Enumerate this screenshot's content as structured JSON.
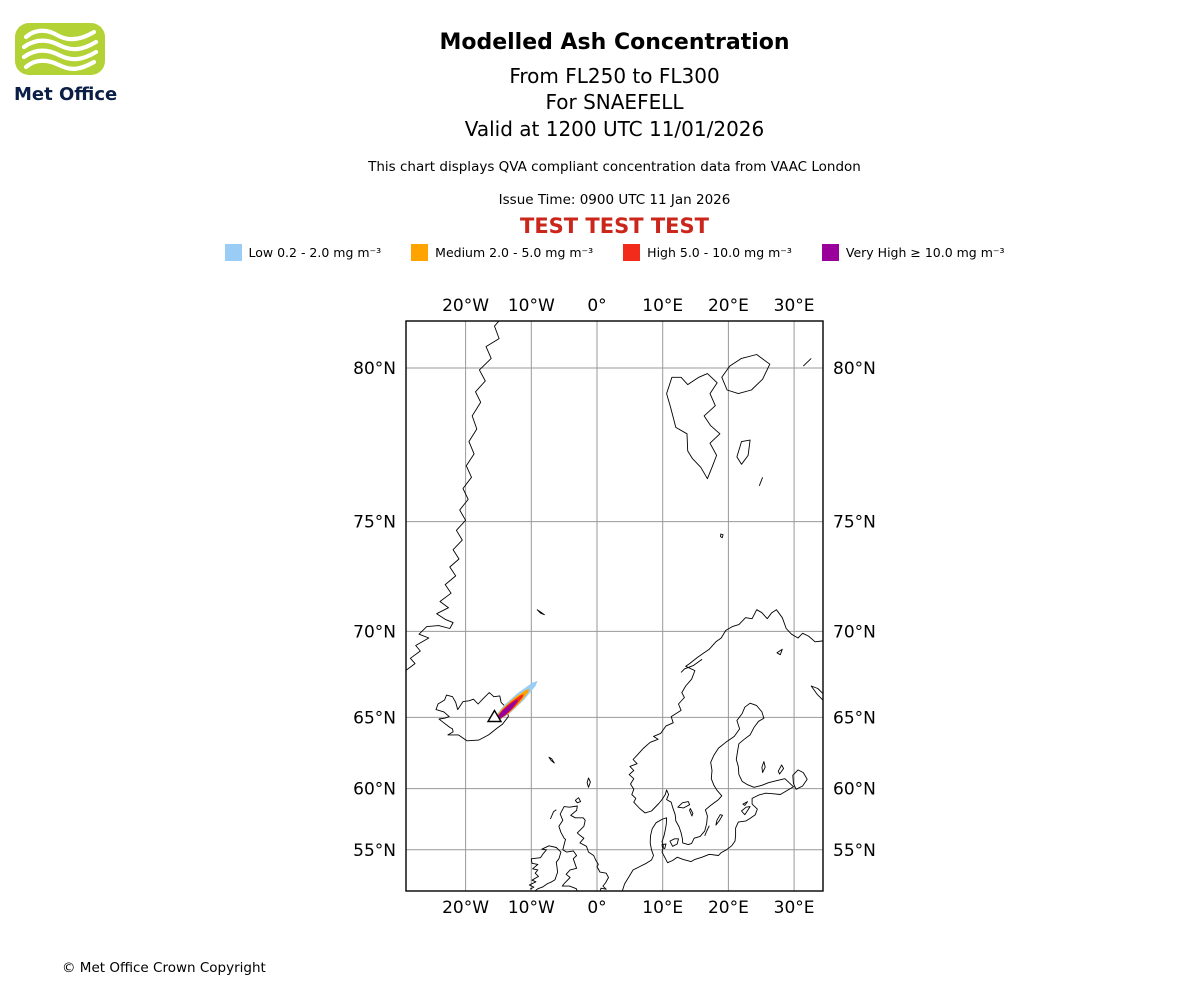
{
  "logo": {
    "brand": "Met Office",
    "green": "#B2D235",
    "navy": "#0A1E46"
  },
  "header": {
    "title": "Modelled Ash Concentration",
    "subtitle1": "From FL250 to FL300",
    "subtitle2": "For SNAEFELL",
    "subtitle3": "Valid at 1200 UTC 11/01/2026",
    "note": "This chart displays QVA compliant concentration data from VAAC London",
    "issue_time": "Issue Time: 0900 UTC 11 Jan 2026",
    "test_banner": "TEST TEST TEST",
    "test_color": "#CB261B"
  },
  "legend": {
    "items": [
      {
        "level": "low",
        "label": "Low 0.2 - 2.0 mg m⁻³",
        "color": "#99CDF5"
      },
      {
        "level": "medium",
        "label": "Medium 2.0 - 5.0 mg m⁻³",
        "color": "#FFA300"
      },
      {
        "level": "high",
        "label": "High 5.0 - 10.0 mg m⁻³",
        "color": "#F32B1A"
      },
      {
        "level": "very_high",
        "label": "Very High ≥ 10.0 mg m⁻³",
        "color": "#9A009A"
      }
    ]
  },
  "map": {
    "lon_ticks": [
      {
        "label": "20°W",
        "value": -20
      },
      {
        "label": "10°W",
        "value": -10
      },
      {
        "label": "0°",
        "value": 0
      },
      {
        "label": "10°E",
        "value": 10
      },
      {
        "label": "20°E",
        "value": 20
      },
      {
        "label": "30°E",
        "value": 30
      }
    ],
    "lat_ticks": [
      {
        "label": "80°N",
        "value": 80
      },
      {
        "label": "75°N",
        "value": 75
      },
      {
        "label": "70°N",
        "value": 70
      },
      {
        "label": "65°N",
        "value": 65
      },
      {
        "label": "60°N",
        "value": 60
      },
      {
        "label": "55°N",
        "value": 55
      }
    ],
    "volcano": {
      "name": "SNAEFELL",
      "lon": -15.6,
      "lat": 64.8
    },
    "plume": {
      "levels": [
        {
          "level": "low",
          "color": "#99CDF5",
          "start": [
            -15.35,
            64.88
          ],
          "end": [
            -9.6,
            67.05
          ],
          "halfwidth": 5
        },
        {
          "level": "medium",
          "color": "#FFA300",
          "start": [
            -15.25,
            64.9
          ],
          "end": [
            -10.7,
            66.62
          ],
          "halfwidth": 4
        },
        {
          "level": "high",
          "color": "#F32B1A",
          "start": [
            -15.15,
            64.92
          ],
          "end": [
            -11.5,
            66.32
          ],
          "halfwidth": 3.2
        },
        {
          "level": "very_high",
          "color": "#9A009A",
          "start": [
            -15.05,
            64.94
          ],
          "end": [
            -12.3,
            66.02
          ],
          "halfwidth": 2.6
        }
      ]
    }
  },
  "footer": {
    "copyright": "© Met Office Crown Copyright"
  }
}
